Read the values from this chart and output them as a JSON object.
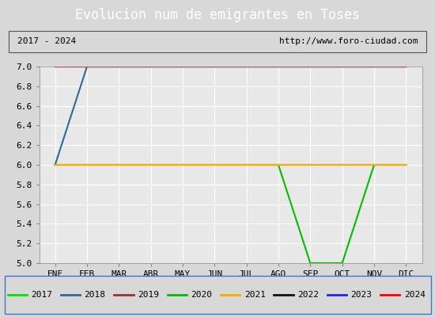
{
  "title": "Evolucion num de emigrantes en Toses",
  "subtitle_left": "2017 - 2024",
  "subtitle_right": "http://www.foro-ciudad.com",
  "months": [
    "ENE",
    "FEB",
    "MAR",
    "ABR",
    "MAY",
    "JUN",
    "JUL",
    "AGO",
    "SEP",
    "OCT",
    "NOV",
    "DIC"
  ],
  "ylim": [
    5.0,
    7.0
  ],
  "yticks": [
    5.0,
    5.2,
    5.4,
    5.6,
    5.8,
    6.0,
    6.2,
    6.4,
    6.6,
    6.8,
    7.0
  ],
  "series": [
    {
      "label": "2017",
      "color": "#00dd00",
      "linewidth": 1.5,
      "values": [
        6.0,
        6.0,
        6.0,
        6.0,
        6.0,
        6.0,
        6.0,
        6.0,
        6.0,
        6.0,
        6.0,
        6.0
      ]
    },
    {
      "label": "2018",
      "color": "#336699",
      "linewidth": 1.5,
      "values": [
        6.0,
        7.0,
        7.0,
        7.0,
        7.0,
        7.0,
        7.0,
        7.0,
        7.0,
        7.0,
        7.0,
        7.0
      ]
    },
    {
      "label": "2019",
      "color": "#993333",
      "linewidth": 1.5,
      "values": [
        7.0,
        7.0,
        7.0,
        7.0,
        7.0,
        7.0,
        7.0,
        7.0,
        7.0,
        7.0,
        7.0,
        7.0
      ]
    },
    {
      "label": "2020",
      "color": "#00bb00",
      "linewidth": 1.5,
      "values": [
        6.0,
        6.0,
        6.0,
        6.0,
        6.0,
        6.0,
        6.0,
        6.0,
        5.0,
        5.0,
        6.0,
        6.0
      ]
    },
    {
      "label": "2021",
      "color": "#ffaa00",
      "linewidth": 1.5,
      "values": [
        6.0,
        6.0,
        6.0,
        6.0,
        6.0,
        6.0,
        6.0,
        6.0,
        6.0,
        6.0,
        6.0,
        6.0
      ]
    },
    {
      "label": "2022",
      "color": "#111111",
      "linewidth": 1.5,
      "values": [
        7.0,
        7.0,
        7.0,
        7.0,
        7.0,
        7.0,
        7.0,
        7.0,
        7.0,
        7.0,
        7.0,
        7.0
      ]
    },
    {
      "label": "2023",
      "color": "#2222ee",
      "linewidth": 1.5,
      "values": [
        7.0,
        7.0,
        7.0,
        7.0,
        7.0,
        7.0,
        7.0,
        7.0,
        7.0,
        7.0,
        7.0,
        7.0
      ]
    },
    {
      "label": "2024",
      "color": "#ff0000",
      "linewidth": 1.5,
      "values": [
        7.0,
        7.0,
        7.0,
        7.0,
        7.0,
        7.0,
        7.0,
        7.0,
        7.0,
        7.0,
        7.0,
        7.0
      ]
    }
  ],
  "fig_bg_color": "#d8d8d8",
  "plot_bg_color": "#e8e8e8",
  "title_bg_color": "#4f86c6",
  "title_color": "#ffffff",
  "grid_color": "#ffffff",
  "subtitle_box_color": "#ffffff",
  "subtitle_border_color": "#555555",
  "legend_border_color": "#4472c4",
  "tick_fontsize": 8,
  "title_fontsize": 12
}
